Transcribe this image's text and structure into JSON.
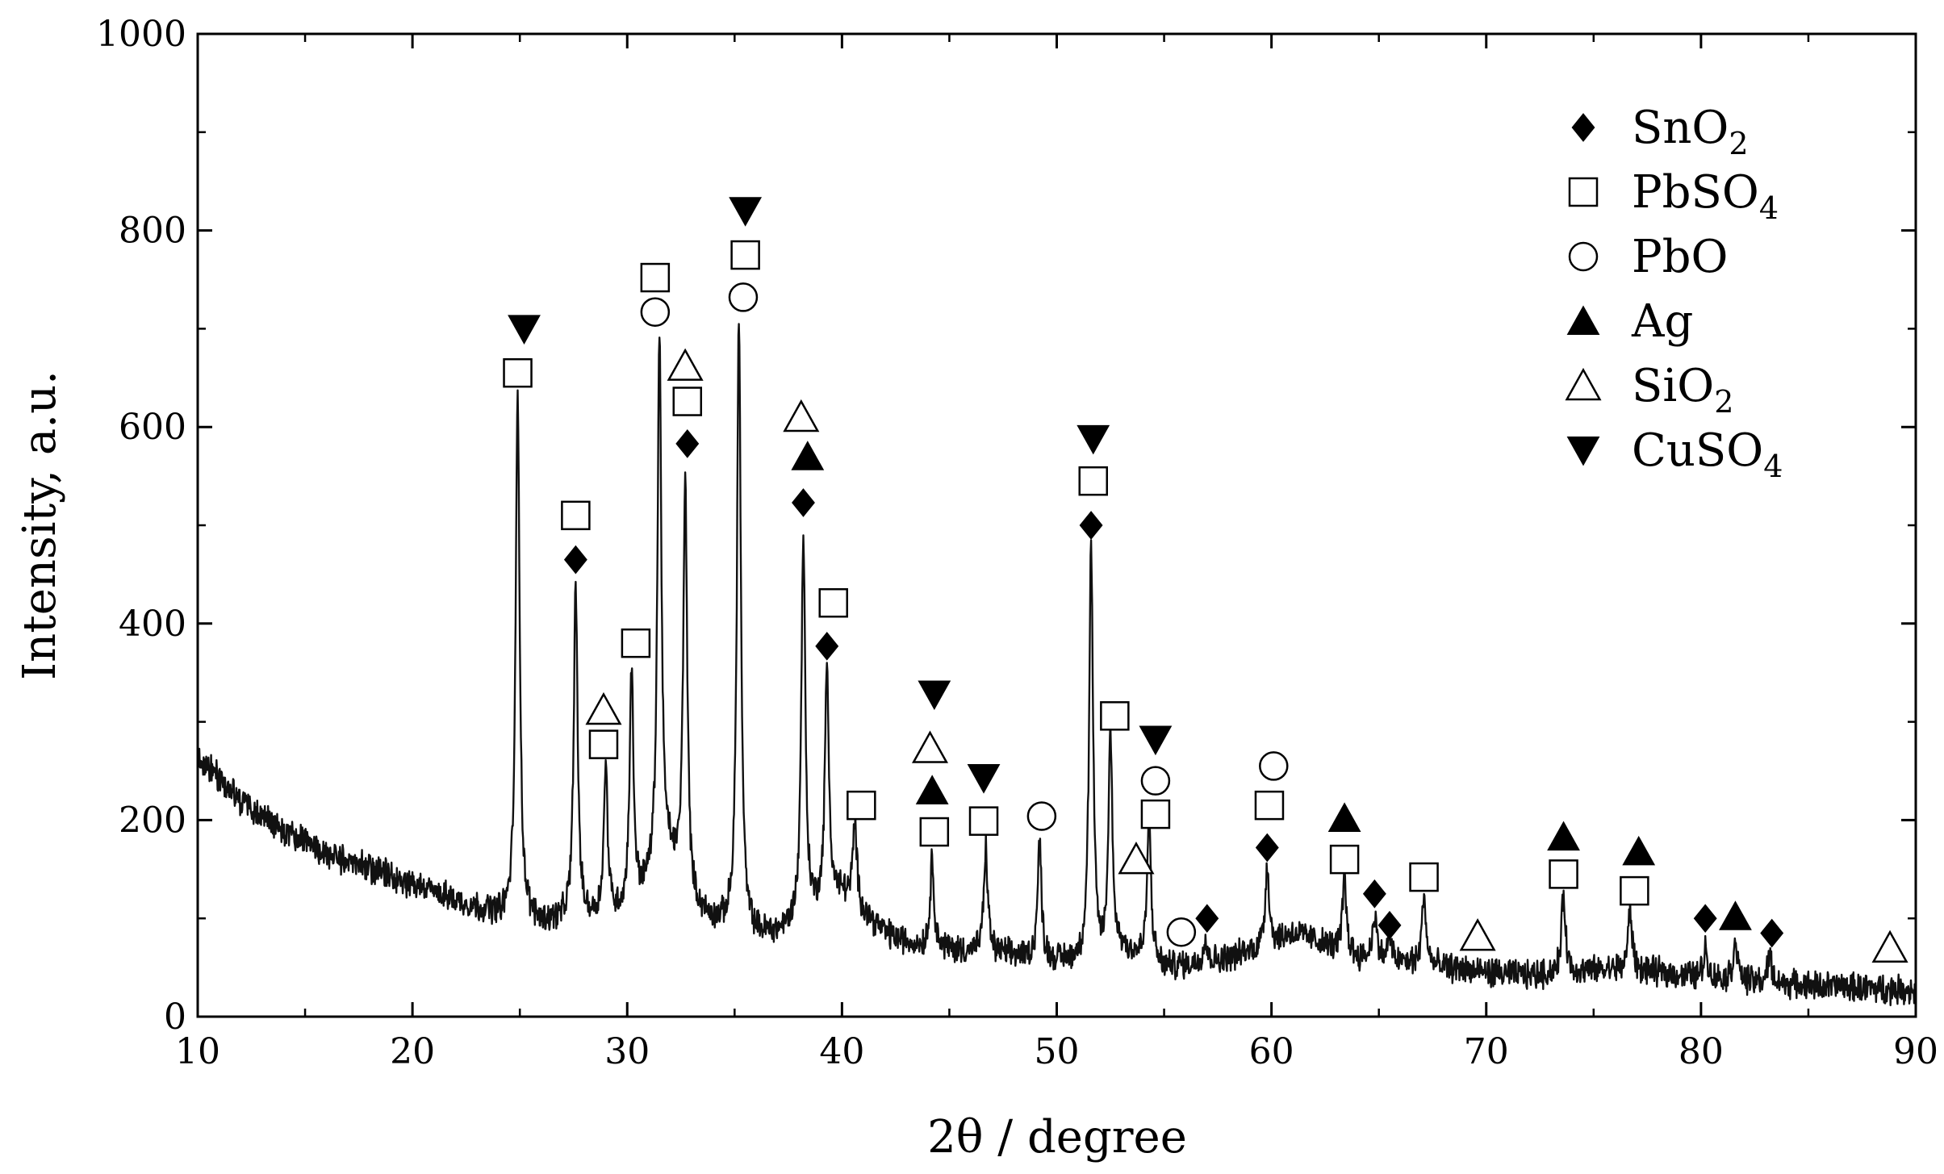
{
  "chart_data": {
    "type": "line",
    "xlabel": "2θ / degree",
    "ylabel": "Intensity, a.u.",
    "xlim": [
      10,
      90
    ],
    "ylim": [
      0,
      1000
    ],
    "x_ticks": [
      10,
      20,
      30,
      40,
      50,
      60,
      70,
      80,
      90
    ],
    "x_tick_labels": [
      "10",
      "20",
      "30",
      "40",
      "50",
      "60",
      "70",
      "80",
      "90"
    ],
    "y_ticks": [
      0,
      200,
      400,
      600,
      800,
      1000
    ],
    "y_tick_labels": [
      "0",
      "200",
      "400",
      "600",
      "800",
      "1000"
    ],
    "grid": false,
    "legend_position": "top-right",
    "line_color": "#111111",
    "baseline": [
      [
        10,
        265
      ],
      [
        12,
        220
      ],
      [
        14,
        190
      ],
      [
        16,
        165
      ],
      [
        18,
        150
      ],
      [
        20,
        135
      ],
      [
        22,
        118
      ],
      [
        24,
        103
      ],
      [
        26,
        95
      ],
      [
        28,
        98
      ],
      [
        30,
        105
      ],
      [
        31,
        130
      ],
      [
        32,
        155
      ],
      [
        33,
        110
      ],
      [
        34,
        95
      ],
      [
        35,
        88
      ],
      [
        36,
        82
      ],
      [
        37,
        84
      ],
      [
        38,
        95
      ],
      [
        39,
        110
      ],
      [
        40,
        125
      ],
      [
        41,
        105
      ],
      [
        42,
        85
      ],
      [
        43,
        75
      ],
      [
        44,
        70
      ],
      [
        46,
        66
      ],
      [
        48,
        62
      ],
      [
        50,
        56
      ],
      [
        52,
        55
      ],
      [
        53,
        68
      ],
      [
        54,
        58
      ],
      [
        55,
        50
      ],
      [
        56,
        52
      ],
      [
        57,
        55
      ],
      [
        58,
        60
      ],
      [
        59,
        66
      ],
      [
        60,
        75
      ],
      [
        61,
        85
      ],
      [
        62,
        78
      ],
      [
        63,
        68
      ],
      [
        64,
        60
      ],
      [
        66,
        55
      ],
      [
        68,
        50
      ],
      [
        70,
        45
      ],
      [
        72,
        42
      ],
      [
        74,
        45
      ],
      [
        76,
        48
      ],
      [
        78,
        45
      ],
      [
        80,
        40
      ],
      [
        82,
        36
      ],
      [
        84,
        33
      ],
      [
        86,
        31
      ],
      [
        88,
        29
      ],
      [
        90,
        27
      ]
    ],
    "peaks": [
      {
        "x": 24.9,
        "y": 635
      },
      {
        "x": 27.6,
        "y": 435
      },
      {
        "x": 29.0,
        "y": 250
      },
      {
        "x": 30.2,
        "y": 350
      },
      {
        "x": 31.5,
        "y": 690
      },
      {
        "x": 32.7,
        "y": 545
      },
      {
        "x": 35.2,
        "y": 710
      },
      {
        "x": 38.2,
        "y": 490
      },
      {
        "x": 39.3,
        "y": 355
      },
      {
        "x": 40.6,
        "y": 195
      },
      {
        "x": 44.2,
        "y": 160
      },
      {
        "x": 46.7,
        "y": 170
      },
      {
        "x": 49.2,
        "y": 175
      },
      {
        "x": 51.6,
        "y": 475
      },
      {
        "x": 52.5,
        "y": 285
      },
      {
        "x": 54.3,
        "y": 200
      },
      {
        "x": 56.9,
        "y": 80
      },
      {
        "x": 59.8,
        "y": 155
      },
      {
        "x": 63.4,
        "y": 140
      },
      {
        "x": 64.8,
        "y": 105
      },
      {
        "x": 65.5,
        "y": 80
      },
      {
        "x": 67.1,
        "y": 125
      },
      {
        "x": 73.6,
        "y": 125
      },
      {
        "x": 76.7,
        "y": 110
      },
      {
        "x": 80.2,
        "y": 70
      },
      {
        "x": 81.6,
        "y": 80
      },
      {
        "x": 83.2,
        "y": 62
      }
    ],
    "legend": [
      {
        "marker": "filled-diamond",
        "text": "SnO",
        "sub": "2"
      },
      {
        "marker": "open-square",
        "text": "PbSO",
        "sub": "4"
      },
      {
        "marker": "open-circle",
        "text": "PbO",
        "sub": ""
      },
      {
        "marker": "filled-triangle-up",
        "text": "Ag",
        "sub": ""
      },
      {
        "marker": "open-triangle-up",
        "text": "SiO",
        "sub": "2"
      },
      {
        "marker": "filled-triangle-down",
        "text": "CuSO",
        "sub": "4"
      }
    ],
    "annotations": [
      {
        "marker": "filled-triangle-down",
        "x": 25.2,
        "y": 700
      },
      {
        "marker": "open-square",
        "x": 24.9,
        "y": 655
      },
      {
        "marker": "open-square",
        "x": 27.6,
        "y": 510
      },
      {
        "marker": "filled-diamond",
        "x": 27.6,
        "y": 465
      },
      {
        "marker": "open-triangle-up",
        "x": 28.9,
        "y": 312
      },
      {
        "marker": "open-square",
        "x": 28.9,
        "y": 277
      },
      {
        "marker": "open-square",
        "x": 30.4,
        "y": 380
      },
      {
        "marker": "open-square",
        "x": 31.3,
        "y": 752
      },
      {
        "marker": "open-circle",
        "x": 31.3,
        "y": 717
      },
      {
        "marker": "open-triangle-up",
        "x": 32.7,
        "y": 662
      },
      {
        "marker": "open-square",
        "x": 32.8,
        "y": 626
      },
      {
        "marker": "filled-diamond",
        "x": 32.8,
        "y": 583
      },
      {
        "marker": "filled-triangle-down",
        "x": 35.5,
        "y": 820
      },
      {
        "marker": "open-square",
        "x": 35.5,
        "y": 775
      },
      {
        "marker": "open-circle",
        "x": 35.4,
        "y": 732
      },
      {
        "marker": "open-triangle-up",
        "x": 38.1,
        "y": 610
      },
      {
        "marker": "filled-triangle-up",
        "x": 38.4,
        "y": 570
      },
      {
        "marker": "filled-diamond",
        "x": 38.2,
        "y": 523
      },
      {
        "marker": "open-square",
        "x": 39.6,
        "y": 421
      },
      {
        "marker": "filled-diamond",
        "x": 39.3,
        "y": 377
      },
      {
        "marker": "open-square",
        "x": 40.9,
        "y": 215
      },
      {
        "marker": "filled-triangle-down",
        "x": 44.3,
        "y": 328
      },
      {
        "marker": "open-triangle-up",
        "x": 44.1,
        "y": 273
      },
      {
        "marker": "filled-triangle-up",
        "x": 44.2,
        "y": 230
      },
      {
        "marker": "open-square",
        "x": 44.3,
        "y": 188
      },
      {
        "marker": "filled-triangle-down",
        "x": 46.6,
        "y": 243
      },
      {
        "marker": "open-square",
        "x": 46.6,
        "y": 199
      },
      {
        "marker": "open-circle",
        "x": 49.3,
        "y": 204
      },
      {
        "marker": "filled-triangle-down",
        "x": 51.7,
        "y": 588
      },
      {
        "marker": "open-square",
        "x": 51.7,
        "y": 545
      },
      {
        "marker": "filled-diamond",
        "x": 51.6,
        "y": 500
      },
      {
        "marker": "open-square",
        "x": 52.7,
        "y": 306
      },
      {
        "marker": "filled-triangle-down",
        "x": 54.6,
        "y": 282
      },
      {
        "marker": "open-circle",
        "x": 54.6,
        "y": 240
      },
      {
        "marker": "open-square",
        "x": 54.6,
        "y": 206
      },
      {
        "marker": "open-triangle-up",
        "x": 53.7,
        "y": 160
      },
      {
        "marker": "open-circle",
        "x": 55.8,
        "y": 86
      },
      {
        "marker": "filled-diamond",
        "x": 57.0,
        "y": 100
      },
      {
        "marker": "open-circle",
        "x": 60.1,
        "y": 255
      },
      {
        "marker": "open-square",
        "x": 59.9,
        "y": 215
      },
      {
        "marker": "filled-diamond",
        "x": 59.8,
        "y": 172
      },
      {
        "marker": "filled-triangle-up",
        "x": 63.4,
        "y": 202
      },
      {
        "marker": "open-square",
        "x": 63.4,
        "y": 160
      },
      {
        "marker": "filled-diamond",
        "x": 64.8,
        "y": 125
      },
      {
        "marker": "filled-diamond",
        "x": 65.5,
        "y": 93
      },
      {
        "marker": "open-square",
        "x": 67.1,
        "y": 142
      },
      {
        "marker": "open-triangle-up",
        "x": 69.6,
        "y": 82
      },
      {
        "marker": "filled-triangle-up",
        "x": 73.6,
        "y": 183
      },
      {
        "marker": "open-square",
        "x": 73.6,
        "y": 145
      },
      {
        "marker": "filled-triangle-up",
        "x": 77.1,
        "y": 168
      },
      {
        "marker": "open-square",
        "x": 76.9,
        "y": 128
      },
      {
        "marker": "filled-diamond",
        "x": 80.2,
        "y": 100
      },
      {
        "marker": "filled-triangle-up",
        "x": 81.6,
        "y": 102
      },
      {
        "marker": "filled-diamond",
        "x": 83.3,
        "y": 85
      },
      {
        "marker": "open-triangle-up",
        "x": 88.8,
        "y": 70
      }
    ]
  }
}
